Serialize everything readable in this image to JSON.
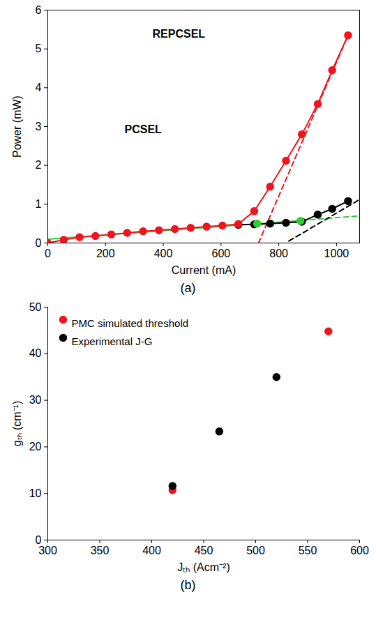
{
  "chart_data": [
    {
      "type": "line",
      "caption": "(a)",
      "x_label": "Current (mA)",
      "y_label": "Power (mW)",
      "xlim": [
        0,
        1080
      ],
      "xticks": [
        0,
        200,
        400,
        600,
        800,
        1000
      ],
      "ylim": [
        0,
        6
      ],
      "yticks": [
        0,
        1,
        2,
        3,
        4,
        5,
        6
      ],
      "grid": false,
      "annotations": [
        "REPCSEL",
        "PCSEL"
      ],
      "series": [
        {
          "color": "#33cc33",
          "line_style": "solid",
          "marker": "none",
          "x": [
            0,
            880
          ],
          "values": [
            0.1,
            0.58
          ]
        },
        {
          "color": "#33cc33",
          "line_style": "dashed",
          "marker": "none",
          "x": [
            880,
            1080
          ],
          "values": [
            0.58,
            0.7
          ]
        },
        {
          "color": "#f0141e",
          "line_style": "dashed",
          "marker": "none",
          "x": [
            730,
            1040
          ],
          "values": [
            0,
            5.35
          ]
        },
        {
          "color": "#000000",
          "line_style": "dashed",
          "marker": "none",
          "x": [
            835,
            1080
          ],
          "values": [
            0.05,
            1.12
          ]
        },
        {
          "name": "PCSEL",
          "color": "#000000",
          "line_style": "solid",
          "marker": "circle",
          "x": [
            660,
            715,
            770,
            825,
            880,
            935,
            985,
            1040
          ],
          "values": [
            0.47,
            0.48,
            0.5,
            0.52,
            0.55,
            0.73,
            0.88,
            1.08
          ]
        },
        {
          "name": "REPCSEL",
          "color": "#f0141e",
          "line_style": "solid",
          "marker": "circle",
          "x": [
            0,
            55,
            110,
            165,
            220,
            275,
            330,
            385,
            440,
            495,
            550,
            605,
            660,
            715,
            770,
            825,
            880,
            935,
            985,
            1040
          ],
          "values": [
            0,
            0.08,
            0.15,
            0.18,
            0.22,
            0.26,
            0.3,
            0.33,
            0.36,
            0.39,
            0.42,
            0.45,
            0.49,
            0.82,
            1.45,
            2.12,
            2.8,
            3.58,
            4.45,
            5.35
          ]
        },
        {
          "color": "#33cc33",
          "line_style": "none",
          "marker": "circle",
          "x": [
            725,
            875
          ],
          "values": [
            0.5,
            0.57
          ]
        }
      ]
    },
    {
      "type": "scatter",
      "caption": "(b)",
      "x_label": "Jₜₕ (Acm⁻²)",
      "y_label": "gₜₕ (cm⁻¹)",
      "xlim": [
        300,
        600
      ],
      "xticks": [
        300,
        350,
        400,
        450,
        500,
        550,
        600
      ],
      "ylim": [
        0,
        50
      ],
      "yticks": [
        0,
        10,
        20,
        30,
        40,
        50
      ],
      "grid": false,
      "legend": "top-left",
      "series": [
        {
          "name": "PMC simulated threshold",
          "color": "#f0141e",
          "line_style": "none",
          "marker": "circle",
          "x": [
            420,
            570
          ],
          "values": [
            10.7,
            44.8
          ]
        },
        {
          "name": "Experimental J-G",
          "color": "#000000",
          "line_style": "none",
          "marker": "circle",
          "x": [
            420,
            465,
            520
          ],
          "values": [
            11.6,
            23.3,
            35
          ]
        }
      ]
    }
  ]
}
